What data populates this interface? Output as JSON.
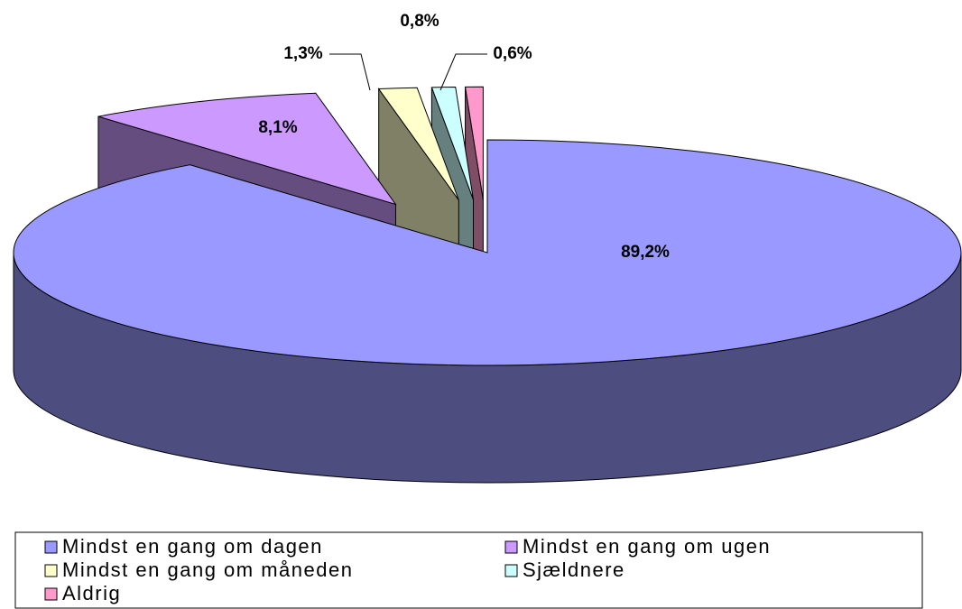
{
  "chart_data": {
    "type": "pie3d",
    "categories": [
      "Mindst en gang om dagen",
      "Mindst en gang om ugen",
      "Mindst en gang om måneden",
      "Sjældnere",
      "Aldrig"
    ],
    "values": [
      89.2,
      8.1,
      1.3,
      0.8,
      0.6
    ],
    "value_labels": [
      "89,2%",
      "8,1%",
      "1,3%",
      "0,8%",
      "0,6%"
    ],
    "colors": [
      "#9999ff",
      "#cc99ff",
      "#ffffcc",
      "#ccffff",
      "#ff99cc"
    ],
    "side_colors": [
      "#4d4d80",
      "#664d80",
      "#808066",
      "#668080",
      "#804d66"
    ],
    "legend": "bottom"
  }
}
